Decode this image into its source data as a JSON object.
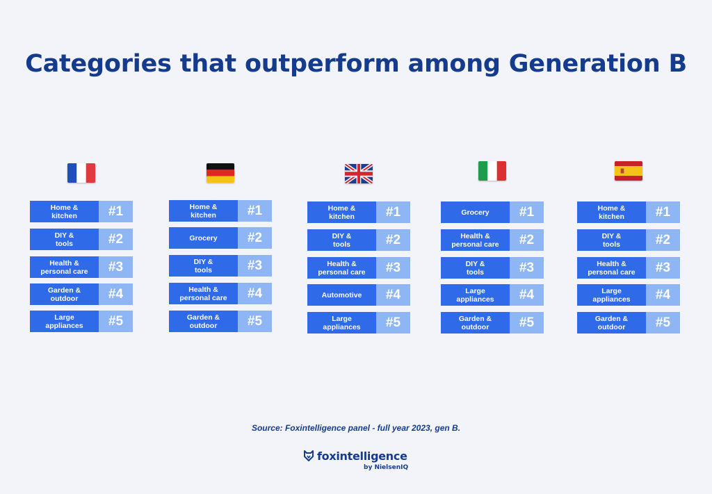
{
  "title": "Categories that outperform among Generation B",
  "countries": [
    {
      "flag": "france-flag-icon",
      "items": [
        {
          "label": "Home &\nkitchen",
          "rank": "#1"
        },
        {
          "label": "DIY &\ntools",
          "rank": "#2"
        },
        {
          "label": "Health &\npersonal care",
          "rank": "#3"
        },
        {
          "label": "Garden &\noutdoor",
          "rank": "#4"
        },
        {
          "label": "Large\nappliances",
          "rank": "#5"
        }
      ]
    },
    {
      "flag": "germany-flag-icon",
      "items": [
        {
          "label": "Home &\nkitchen",
          "rank": "#1"
        },
        {
          "label": "Grocery",
          "rank": "#2"
        },
        {
          "label": "DIY &\ntools",
          "rank": "#3"
        },
        {
          "label": "Health &\npersonal care",
          "rank": "#4"
        },
        {
          "label": "Garden &\noutdoor",
          "rank": "#5"
        }
      ]
    },
    {
      "flag": "uk-flag-icon",
      "items": [
        {
          "label": "Home &\nkitchen",
          "rank": "#1"
        },
        {
          "label": "DIY &\ntools",
          "rank": "#2"
        },
        {
          "label": "Health &\npersonal care",
          "rank": "#3"
        },
        {
          "label": "Automotive",
          "rank": "#4"
        },
        {
          "label": "Large\nappliances",
          "rank": "#5"
        }
      ]
    },
    {
      "flag": "italy-flag-icon",
      "items": [
        {
          "label": "Grocery",
          "rank": "#1"
        },
        {
          "label": "Health &\npersonal care",
          "rank": "#2"
        },
        {
          "label": "DIY &\ntools",
          "rank": "#3"
        },
        {
          "label": "Large\nappliances",
          "rank": "#4"
        },
        {
          "label": "Garden &\noutdoor",
          "rank": "#5"
        }
      ]
    },
    {
      "flag": "spain-flag-icon",
      "items": [
        {
          "label": "Home &\nkitchen",
          "rank": "#1"
        },
        {
          "label": "DIY &\ntools",
          "rank": "#2"
        },
        {
          "label": "Health &\npersonal care",
          "rank": "#3"
        },
        {
          "label": "Large\nappliances",
          "rank": "#4"
        },
        {
          "label": "Garden &\noutdoor",
          "rank": "#5"
        }
      ]
    }
  ],
  "source": "Source: Foxintelligence panel - full year 2023, gen B.",
  "logo": {
    "icon": "fox-shield-icon",
    "name": "foxintelligence",
    "sub": "by NielsenIQ"
  },
  "colors": {
    "title": "#153b8c",
    "category_bg": "#2f6ae8",
    "rank_bg": "#8fb6f4",
    "background": "#f3f4f9"
  }
}
